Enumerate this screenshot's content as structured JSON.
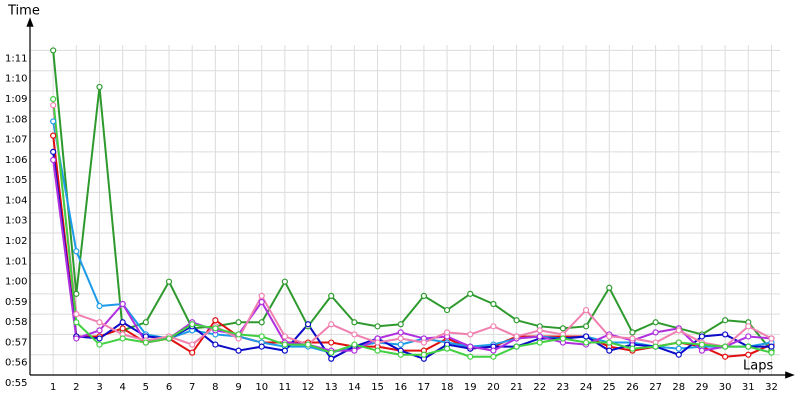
{
  "chart_data": {
    "type": "line",
    "y_label": "Time",
    "x_label": "Laps",
    "x": [
      1,
      2,
      3,
      4,
      5,
      6,
      7,
      8,
      9,
      10,
      11,
      12,
      13,
      14,
      15,
      16,
      17,
      18,
      19,
      20,
      21,
      22,
      23,
      24,
      25,
      26,
      27,
      28,
      29,
      30,
      31,
      32
    ],
    "xlim": [
      0,
      32.8
    ],
    "xticks": [
      1,
      2,
      3,
      4,
      5,
      6,
      7,
      8,
      9,
      10,
      11,
      12,
      13,
      14,
      15,
      16,
      17,
      18,
      19,
      20,
      21,
      22,
      23,
      24,
      25,
      26,
      27,
      28,
      29,
      30,
      31,
      32
    ],
    "ylim": [
      55,
      72.5
    ],
    "yticks": [
      {
        "value": 55,
        "label": "0:55"
      },
      {
        "value": 56,
        "label": "0:56"
      },
      {
        "value": 57,
        "label": "0:57"
      },
      {
        "value": 58,
        "label": "0:58"
      },
      {
        "value": 59,
        "label": "0:59"
      },
      {
        "value": 60,
        "label": "1:00"
      },
      {
        "value": 61,
        "label": "1:01"
      },
      {
        "value": 62,
        "label": "1:02"
      },
      {
        "value": 63,
        "label": "1:03"
      },
      {
        "value": 64,
        "label": "1:04"
      },
      {
        "value": 65,
        "label": "1:05"
      },
      {
        "value": 66,
        "label": "1:06"
      },
      {
        "value": 67,
        "label": "1:07"
      },
      {
        "value": 68,
        "label": "1:08"
      },
      {
        "value": 69,
        "label": "1:09"
      },
      {
        "value": 70,
        "label": "1:10"
      },
      {
        "value": 71,
        "label": "1:11"
      }
    ],
    "grid": true,
    "series": [
      {
        "color": "#2e9a2e",
        "values": [
          71.0,
          59.0,
          69.2,
          57.2,
          57.6,
          59.6,
          57.3,
          57.4,
          57.6,
          57.6,
          59.6,
          57.4,
          58.9,
          57.6,
          57.4,
          57.5,
          58.9,
          58.2,
          59.0,
          58.5,
          57.7,
          57.4,
          57.3,
          57.4,
          59.3,
          57.1,
          57.6,
          57.3,
          57.0,
          57.7,
          57.6,
          56.2
        ]
      },
      {
        "color": "#e01010",
        "values": [
          66.8,
          56.9,
          56.9,
          57.3,
          56.6,
          56.8,
          56.1,
          57.7,
          56.9,
          56.6,
          56.6,
          56.6,
          56.6,
          56.4,
          56.4,
          56.2,
          56.2,
          56.8,
          56.3,
          56.4,
          56.9,
          56.9,
          56.9,
          56.9,
          56.4,
          56.2,
          56.4,
          56.6,
          56.4,
          55.9,
          56.0,
          56.5
        ]
      },
      {
        "color": "#1e9be8",
        "values": [
          67.5,
          61.1,
          58.4,
          58.5,
          57.0,
          56.8,
          57.2,
          57.0,
          56.9,
          56.6,
          56.4,
          56.4,
          56.1,
          56.4,
          56.6,
          56.5,
          56.8,
          56.6,
          56.4,
          56.5,
          56.8,
          56.9,
          56.8,
          56.9,
          56.6,
          56.6,
          56.4,
          56.3,
          56.4,
          56.4,
          56.4,
          56.6
        ]
      },
      {
        "color": "#0a0ac8",
        "values": [
          66.0,
          56.9,
          56.8,
          57.6,
          56.9,
          56.8,
          57.4,
          56.5,
          56.2,
          56.4,
          56.2,
          57.5,
          55.8,
          56.4,
          56.8,
          56.2,
          55.8,
          56.5,
          56.3,
          56.4,
          56.4,
          56.8,
          56.8,
          56.9,
          56.2,
          56.5,
          56.4,
          56.0,
          56.9,
          57.0,
          56.4,
          56.4
        ]
      },
      {
        "color": "#b030e0",
        "values": [
          65.6,
          56.8,
          57.2,
          58.5,
          56.6,
          56.8,
          57.6,
          57.2,
          57.0,
          58.6,
          56.6,
          56.5,
          56.2,
          56.2,
          56.8,
          57.1,
          56.8,
          56.9,
          56.4,
          56.2,
          56.8,
          56.9,
          56.6,
          56.5,
          57.0,
          56.7,
          57.1,
          57.3,
          56.2,
          56.4,
          56.9,
          56.8
        ]
      },
      {
        "color": "#f080b0",
        "values": [
          68.3,
          58.0,
          57.6,
          57.0,
          56.7,
          56.9,
          56.5,
          57.4,
          56.8,
          58.9,
          56.9,
          56.5,
          57.5,
          57.0,
          56.6,
          56.8,
          56.6,
          57.1,
          57.0,
          57.4,
          56.9,
          57.2,
          57.0,
          58.2,
          56.9,
          56.8,
          56.6,
          57.2,
          56.6,
          56.4,
          57.4,
          56.8
        ]
      },
      {
        "color": "#40d040",
        "values": [
          68.6,
          57.6,
          56.5,
          56.8,
          56.6,
          56.8,
          57.5,
          57.3,
          57.0,
          56.9,
          56.5,
          56.5,
          56.1,
          56.5,
          56.2,
          56.0,
          56.0,
          56.3,
          55.9,
          55.9,
          56.4,
          56.6,
          56.8,
          56.6,
          56.6,
          56.3,
          56.4,
          56.6,
          56.5,
          56.4,
          56.4,
          56.1
        ]
      }
    ]
  }
}
